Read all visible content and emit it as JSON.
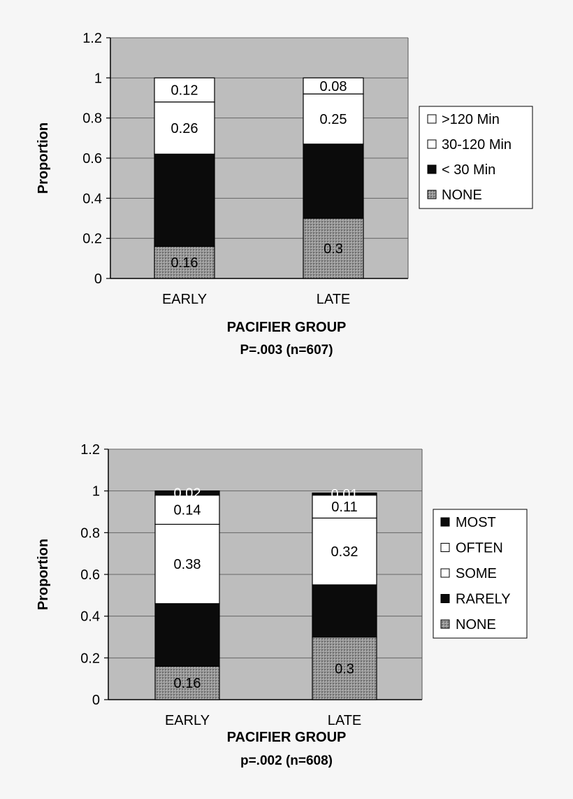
{
  "colors": {
    "background": "#f6f6f6",
    "plot_area": "#bdbdbd",
    "gridline": "#666666",
    "black_segment": "#0b0b0b",
    "white_segment": "#ffffff",
    "hatched_segment": "#9a9a9a",
    "text": "#000000"
  },
  "chart_data": [
    {
      "type": "bar",
      "stacked": true,
      "categories": [
        "EARLY",
        "LATE"
      ],
      "ylabel": "Proportion",
      "xlabel": "PACIFIER GROUP",
      "subtitle": "P=.003 (n=607)",
      "ylim": [
        0,
        1.2
      ],
      "yticks": [
        "0",
        "0.2",
        "0.4",
        "0.6",
        "0.8",
        "1",
        "1.2"
      ],
      "grid": true,
      "legend_position": "right",
      "series": [
        {
          "name": "NONE",
          "values": [
            0.16,
            0.3
          ],
          "labels": [
            "0.16",
            "0.3"
          ],
          "fill": "hatched"
        },
        {
          "name": "< 30 Min",
          "values": [
            0.46,
            0.37
          ],
          "labels": [
            "",
            ""
          ],
          "fill": "black"
        },
        {
          "name": "30-120 Min",
          "values": [
            0.26,
            0.25
          ],
          "labels": [
            "0.26",
            "0.25"
          ],
          "fill": "white"
        },
        {
          "name": ">120 Min",
          "values": [
            0.12,
            0.08
          ],
          "labels": [
            "0.12",
            "0.08"
          ],
          "fill": "white"
        }
      ],
      "legend_order": [
        ">120 Min",
        "30-120 Min",
        "< 30 Min",
        "NONE"
      ]
    },
    {
      "type": "bar",
      "stacked": true,
      "categories": [
        "EARLY",
        "LATE"
      ],
      "ylabel": "Proportion",
      "xlabel": "PACIFIER GROUP",
      "subtitle": "p=.002 (n=608)",
      "ylim": [
        0,
        1.2
      ],
      "yticks": [
        "0",
        "0.2",
        "0.4",
        "0.6",
        "0.8",
        "1",
        "1.2"
      ],
      "grid": true,
      "legend_position": "right",
      "series": [
        {
          "name": "NONE",
          "values": [
            0.16,
            0.3
          ],
          "labels": [
            "0.16",
            "0.3"
          ],
          "fill": "hatched"
        },
        {
          "name": "RARELY",
          "values": [
            0.3,
            0.25
          ],
          "labels": [
            "",
            ""
          ],
          "fill": "black"
        },
        {
          "name": "SOME",
          "values": [
            0.38,
            0.32
          ],
          "labels": [
            "0.38",
            "0.32"
          ],
          "fill": "white"
        },
        {
          "name": "OFTEN",
          "values": [
            0.14,
            0.11
          ],
          "labels": [
            "0.14",
            "0.11"
          ],
          "fill": "white"
        },
        {
          "name": "MOST",
          "values": [
            0.02,
            0.01
          ],
          "labels": [
            "0.02",
            "0.01"
          ],
          "fill": "black"
        }
      ],
      "legend_order": [
        "MOST",
        "OFTEN",
        "SOME",
        "RARELY",
        "NONE"
      ]
    }
  ]
}
